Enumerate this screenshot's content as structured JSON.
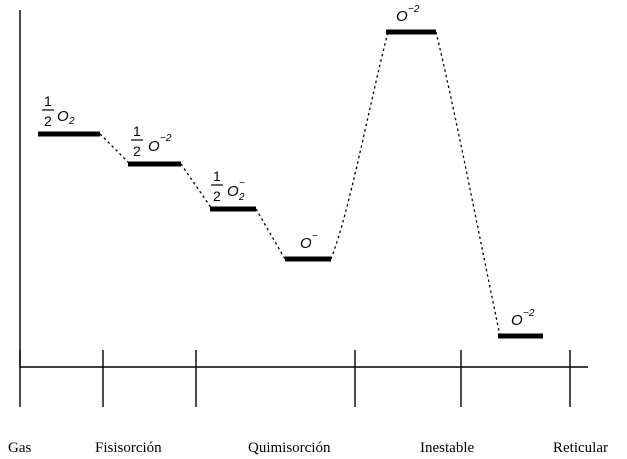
{
  "stages": [
    "Gas",
    "Fisisorción",
    "Quimisorción",
    "Inestable",
    "Reticular"
  ],
  "levels": [
    {
      "id": "gas-o2",
      "coef": "1/2",
      "frac_num": "1",
      "frac_den": "2",
      "species": "O",
      "sub": "2",
      "sup": ""
    },
    {
      "id": "fisisorcion",
      "coef": "1/2",
      "frac_num": "1",
      "frac_den": "2",
      "species": "O",
      "sub": "",
      "sup": "−2"
    },
    {
      "id": "quimisorcion-1",
      "coef": "1/2",
      "frac_num": "1",
      "frac_den": "2",
      "species": "O",
      "sub": "2",
      "sup": "−"
    },
    {
      "id": "quimisorcion-2",
      "coef": "",
      "frac_num": "",
      "frac_den": "",
      "species": "O",
      "sub": "",
      "sup": "−"
    },
    {
      "id": "inestable",
      "coef": "",
      "frac_num": "",
      "frac_den": "",
      "species": "O",
      "sub": "",
      "sup": "−2"
    },
    {
      "id": "reticular",
      "coef": "",
      "frac_num": "",
      "frac_den": "",
      "species": "O",
      "sub": "",
      "sup": "−2"
    }
  ]
}
